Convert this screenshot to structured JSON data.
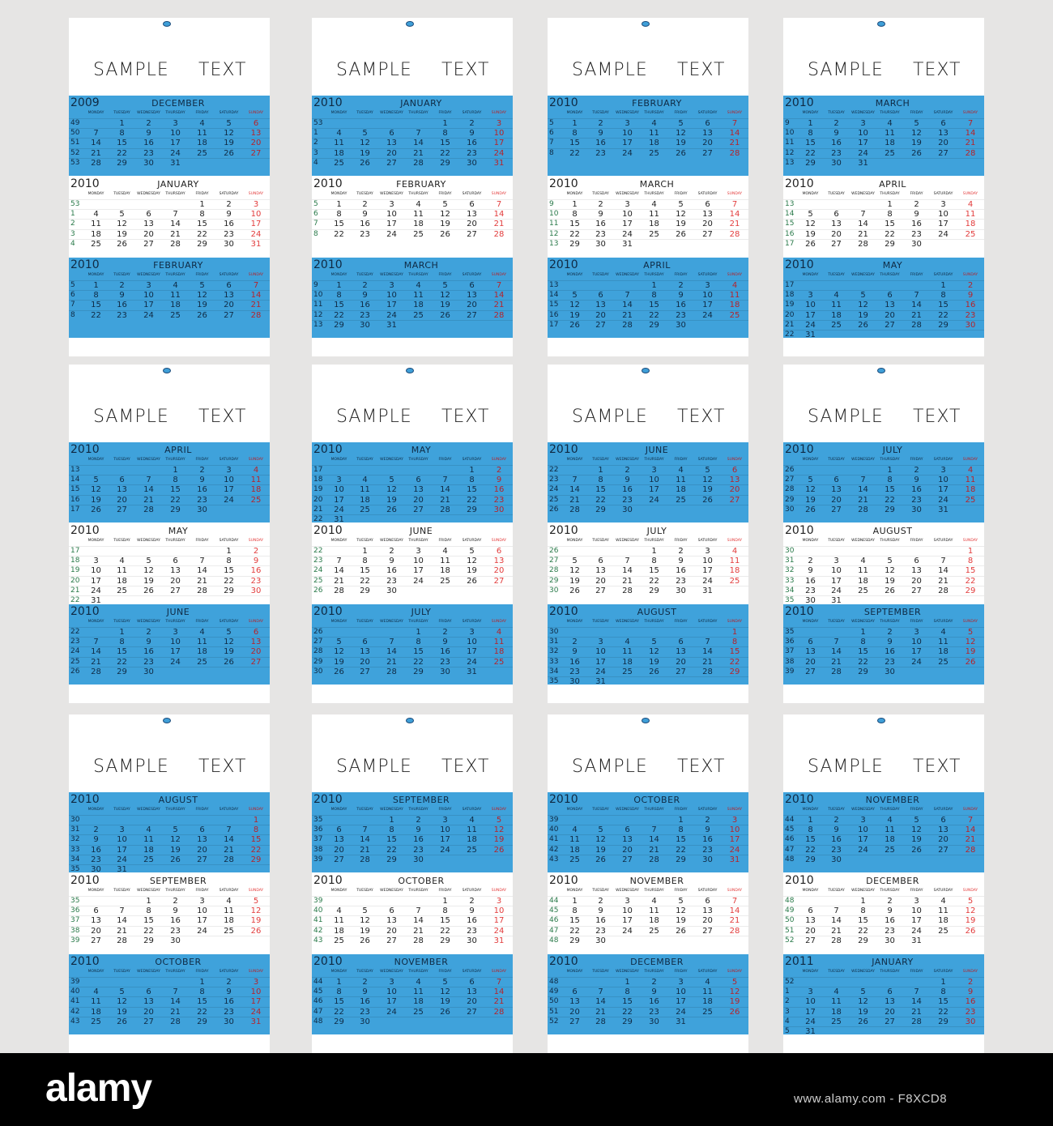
{
  "sample_text": [
    "SAMPLE",
    "TEXT"
  ],
  "weekday_labels": [
    "MONDAY",
    "TUESDAY",
    "WEDNESDAY",
    "THURSDAY",
    "FRIDAY",
    "SATURDAY",
    "SUNDAY"
  ],
  "colors": {
    "blue": "#3fa2db",
    "sunday_red": "#e23c3c",
    "week_green": "#2a7a4a"
  },
  "calendars": [
    {
      "months": [
        {
          "y": 2009,
          "m": 12,
          "style": "blue"
        },
        {
          "y": 2010,
          "m": 1,
          "style": "white"
        },
        {
          "y": 2010,
          "m": 2,
          "style": "blue"
        }
      ]
    },
    {
      "months": [
        {
          "y": 2010,
          "m": 1,
          "style": "blue"
        },
        {
          "y": 2010,
          "m": 2,
          "style": "white"
        },
        {
          "y": 2010,
          "m": 3,
          "style": "blue"
        }
      ]
    },
    {
      "months": [
        {
          "y": 2010,
          "m": 2,
          "style": "blue"
        },
        {
          "y": 2010,
          "m": 3,
          "style": "white"
        },
        {
          "y": 2010,
          "m": 4,
          "style": "blue"
        }
      ]
    },
    {
      "months": [
        {
          "y": 2010,
          "m": 3,
          "style": "blue"
        },
        {
          "y": 2010,
          "m": 4,
          "style": "white"
        },
        {
          "y": 2010,
          "m": 5,
          "style": "blue"
        }
      ]
    },
    {
      "months": [
        {
          "y": 2010,
          "m": 4,
          "style": "blue"
        },
        {
          "y": 2010,
          "m": 5,
          "style": "white"
        },
        {
          "y": 2010,
          "m": 6,
          "style": "blue"
        }
      ]
    },
    {
      "months": [
        {
          "y": 2010,
          "m": 5,
          "style": "blue"
        },
        {
          "y": 2010,
          "m": 6,
          "style": "white"
        },
        {
          "y": 2010,
          "m": 7,
          "style": "blue"
        }
      ]
    },
    {
      "months": [
        {
          "y": 2010,
          "m": 6,
          "style": "blue"
        },
        {
          "y": 2010,
          "m": 7,
          "style": "white"
        },
        {
          "y": 2010,
          "m": 8,
          "style": "blue"
        }
      ]
    },
    {
      "months": [
        {
          "y": 2010,
          "m": 7,
          "style": "blue"
        },
        {
          "y": 2010,
          "m": 8,
          "style": "white"
        },
        {
          "y": 2010,
          "m": 9,
          "style": "blue"
        }
      ]
    },
    {
      "months": [
        {
          "y": 2010,
          "m": 8,
          "style": "blue"
        },
        {
          "y": 2010,
          "m": 9,
          "style": "white"
        },
        {
          "y": 2010,
          "m": 10,
          "style": "blue"
        }
      ]
    },
    {
      "months": [
        {
          "y": 2010,
          "m": 9,
          "style": "blue"
        },
        {
          "y": 2010,
          "m": 10,
          "style": "white"
        },
        {
          "y": 2010,
          "m": 11,
          "style": "blue"
        }
      ]
    },
    {
      "months": [
        {
          "y": 2010,
          "m": 10,
          "style": "blue"
        },
        {
          "y": 2010,
          "m": 11,
          "style": "white"
        },
        {
          "y": 2010,
          "m": 12,
          "style": "blue"
        }
      ]
    },
    {
      "months": [
        {
          "y": 2010,
          "m": 11,
          "style": "blue"
        },
        {
          "y": 2010,
          "m": 12,
          "style": "white"
        },
        {
          "y": 2011,
          "m": 1,
          "style": "blue"
        }
      ]
    }
  ],
  "month_names": [
    "JANUARY",
    "FEBRUARY",
    "MARCH",
    "APRIL",
    "MAY",
    "JUNE",
    "JULY",
    "AUGUST",
    "SEPTEMBER",
    "OCTOBER",
    "NOVEMBER",
    "DECEMBER"
  ],
  "footer": {
    "logo": "alamy",
    "credit": "www.alamy.com - F8XCD8"
  }
}
